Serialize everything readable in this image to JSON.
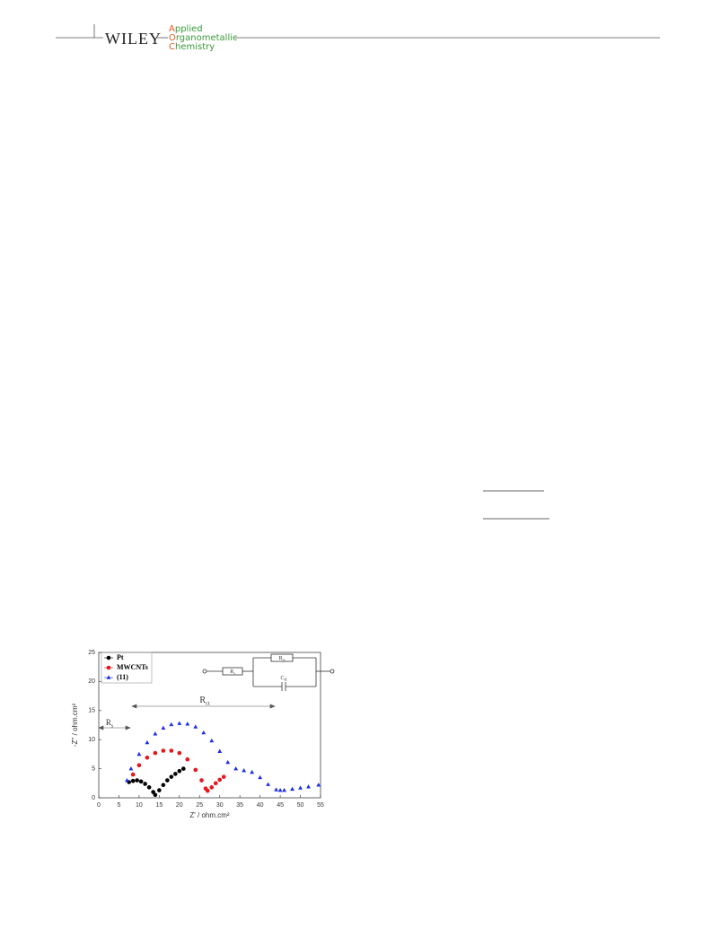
{
  "header": {
    "brand": "WILEY",
    "journal": [
      "Applied",
      "Organometallic",
      "Chemistry"
    ]
  },
  "chart_data": {
    "type": "scatter",
    "x_label": "Z' / ohm.cm²",
    "y_label": "-Z'' / ohm.cm²",
    "xlim": [
      0,
      55
    ],
    "xticks": [
      0,
      5,
      10,
      15,
      20,
      25,
      30,
      35,
      40,
      45,
      50,
      55
    ],
    "ylim": [
      0,
      25
    ],
    "yticks": [
      0,
      5,
      10,
      15,
      20,
      25
    ],
    "legend": "upper left",
    "series": [
      {
        "name": "Pt",
        "color": "#000000",
        "marker": "circle",
        "x": [
          7.5,
          8.5,
          9.5,
          10.5,
          11.5,
          12.5,
          13.5,
          14,
          15,
          16,
          17,
          18,
          19,
          20,
          21
        ],
        "values": [
          2.7,
          2.9,
          3.0,
          2.8,
          2.4,
          1.8,
          1.0,
          0.5,
          1.3,
          2.2,
          3.0,
          3.6,
          4.1,
          4.6,
          5.0
        ]
      },
      {
        "name": "MWCNTs",
        "color": "#e8141c",
        "marker": "circle",
        "x": [
          8.5,
          10,
          12,
          14,
          16,
          18,
          20,
          22,
          24,
          25.5,
          26.5,
          27,
          28,
          29,
          30,
          31
        ],
        "values": [
          4.0,
          5.6,
          6.9,
          7.7,
          8.1,
          8.1,
          7.7,
          6.6,
          4.8,
          3.0,
          1.6,
          1.2,
          1.8,
          2.5,
          3.1,
          3.6
        ]
      },
      {
        "name": "(11)",
        "color": "#1a2cf0",
        "marker": "triangle",
        "x": [
          7,
          8,
          10,
          12,
          14,
          16,
          18,
          20,
          22,
          24,
          26,
          28,
          30,
          32,
          34,
          36,
          38,
          40,
          42,
          44,
          45,
          46,
          48,
          50,
          52,
          54.5
        ],
        "values": [
          3,
          5,
          7.5,
          9.5,
          11,
          12,
          12.6,
          12.8,
          12.7,
          12.2,
          11.2,
          9.8,
          8,
          6.1,
          5,
          4.7,
          4.4,
          3.5,
          2.3,
          1.4,
          1.3,
          1.3,
          1.5,
          1.7,
          1.9,
          2.2
        ]
      }
    ],
    "annotations": [
      {
        "text": "R",
        "sub": "ct"
      },
      {
        "text": "R",
        "sub": "s"
      }
    ],
    "circuit_labels": [
      {
        "text": "R",
        "sub": "s"
      },
      {
        "text": "R",
        "sub": "ct"
      },
      {
        "text": "C",
        "sub": "dl"
      }
    ]
  }
}
